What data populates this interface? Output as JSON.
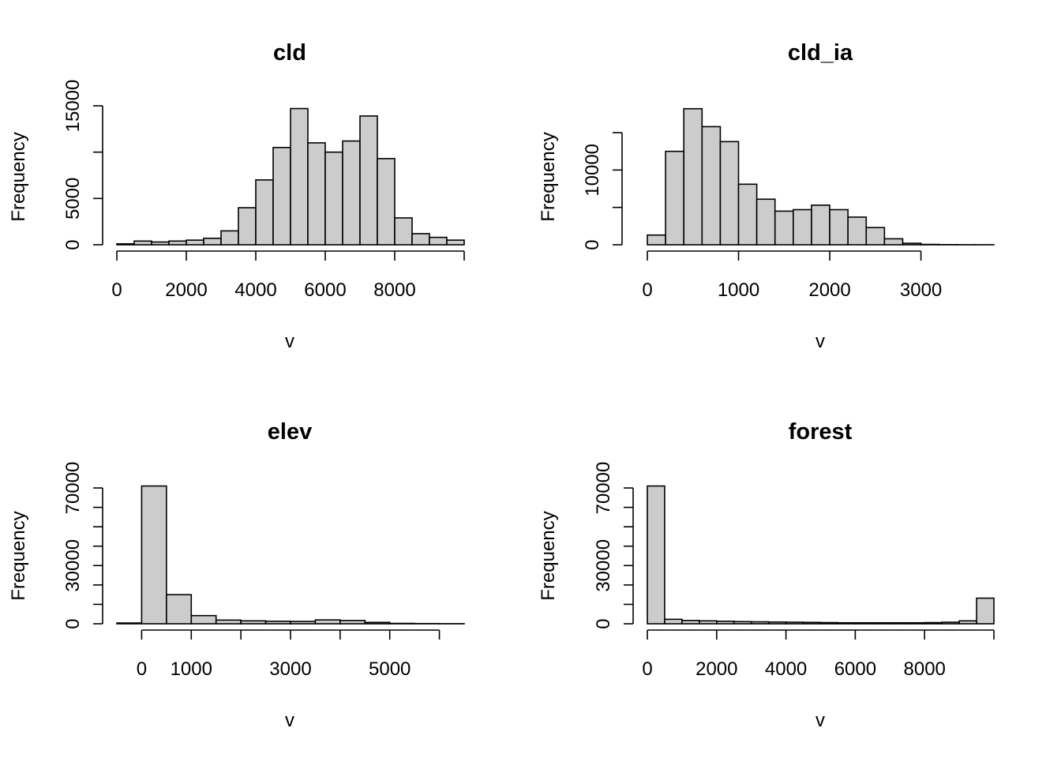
{
  "chart_data": [
    {
      "type": "bar",
      "title": "cld",
      "xlabel": "v",
      "ylabel": "Frequency",
      "bin_width": 500,
      "bin_start": 0,
      "values": [
        100,
        400,
        300,
        400,
        500,
        700,
        1500,
        4000,
        7000,
        10500,
        14700,
        11000,
        10000,
        11200,
        13900,
        9300,
        2900,
        1200,
        800,
        500
      ],
      "xlim": [
        0,
        10000
      ],
      "ylim": [
        0,
        15000
      ],
      "xticks": [
        0,
        2000,
        4000,
        6000,
        8000
      ],
      "xtick_labels": [
        "0",
        "2000",
        "4000",
        "6000",
        "8000"
      ],
      "yticks": [
        0,
        5000,
        15000
      ],
      "ytick_labels": [
        "0",
        "5000",
        "15000"
      ],
      "yminor": [
        10000
      ]
    },
    {
      "type": "bar",
      "title": "cld_ia",
      "xlabel": "v",
      "ylabel": "Frequency",
      "bin_width": 200,
      "bin_start": 0,
      "values": [
        1300,
        12500,
        18200,
        15800,
        13800,
        8100,
        6100,
        4500,
        4700,
        5300,
        4700,
        3700,
        2300,
        800,
        200,
        50,
        20,
        10,
        5
      ],
      "xlim": [
        0,
        3800
      ],
      "ylim": [
        0,
        15000
      ],
      "xticks": [
        0,
        1000,
        2000,
        3000
      ],
      "xtick_labels": [
        "0",
        "1000",
        "2000",
        "3000"
      ],
      "yticks": [
        0,
        10000
      ],
      "ytick_labels": [
        "0",
        "10000"
      ],
      "yminor": [
        5000,
        15000
      ]
    },
    {
      "type": "bar",
      "title": "elev",
      "xlabel": "v",
      "ylabel": "Frequency",
      "bin_width": 500,
      "bin_start": -500,
      "values": [
        400,
        71000,
        15000,
        4200,
        1900,
        1500,
        1300,
        1200,
        2000,
        1700,
        700,
        200,
        100,
        50
      ],
      "xlim": [
        -500,
        6500
      ],
      "ylim": [
        0,
        70000
      ],
      "xticks": [
        0,
        1000,
        3000,
        5000
      ],
      "xtick_labels": [
        "0",
        "1000",
        "3000",
        "5000"
      ],
      "xminor": [
        2000,
        4000,
        6000
      ],
      "yticks": [
        0,
        30000,
        70000
      ],
      "ytick_labels": [
        "0",
        "30000",
        "70000"
      ],
      "yminor": [
        10000,
        20000,
        40000,
        50000,
        60000
      ]
    },
    {
      "type": "bar",
      "title": "forest",
      "xlabel": "v",
      "ylabel": "Frequency",
      "bin_width": 500,
      "bin_start": 0,
      "values": [
        71000,
        2300,
        1700,
        1500,
        1300,
        1100,
        1000,
        900,
        800,
        700,
        600,
        500,
        500,
        500,
        500,
        500,
        600,
        800,
        1500,
        13200
      ],
      "xlim": [
        0,
        10000
      ],
      "ylim": [
        0,
        70000
      ],
      "xticks": [
        0,
        2000,
        4000,
        6000,
        8000
      ],
      "xtick_labels": [
        "0",
        "2000",
        "4000",
        "6000",
        "8000"
      ],
      "yticks": [
        0,
        30000,
        70000
      ],
      "ytick_labels": [
        "0",
        "30000",
        "70000"
      ],
      "yminor": [
        10000,
        20000,
        40000,
        50000,
        60000
      ]
    }
  ]
}
